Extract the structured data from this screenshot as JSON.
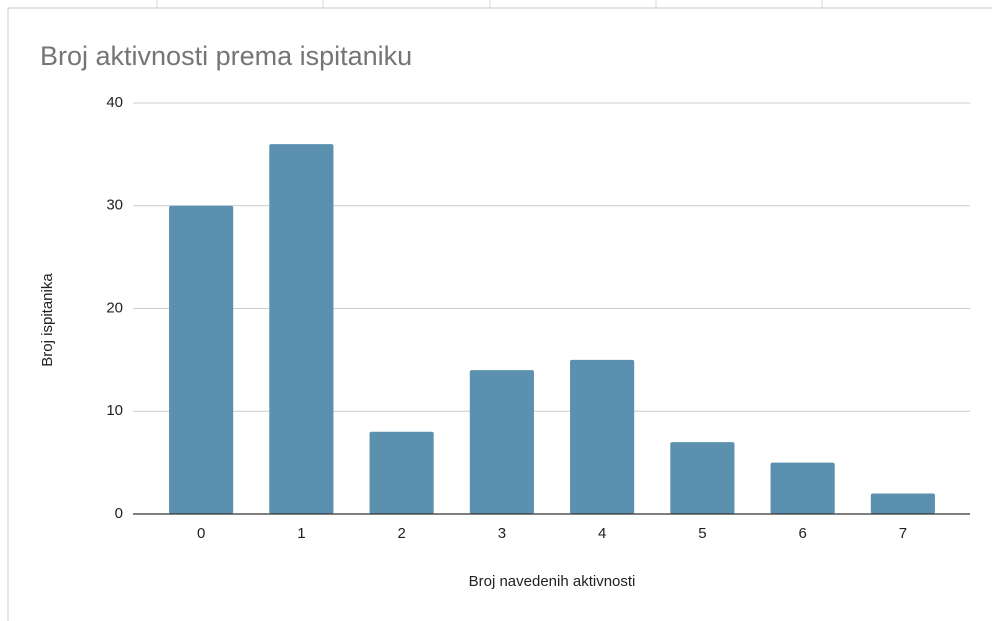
{
  "chart_data": {
    "type": "bar",
    "title": "Broj aktivnosti prema ispitaniku",
    "x_label": "Broj navedenih aktivnosti",
    "y_label": "Broj ispitanika",
    "categories": [
      "0",
      "1",
      "2",
      "3",
      "4",
      "5",
      "6",
      "7"
    ],
    "values": [
      30,
      36,
      8,
      14,
      15,
      7,
      5,
      2
    ],
    "color": "#5b90ae",
    "ylim": [
      0,
      40
    ],
    "yticks": [
      0,
      10,
      20,
      30,
      40
    ],
    "grid": true
  }
}
